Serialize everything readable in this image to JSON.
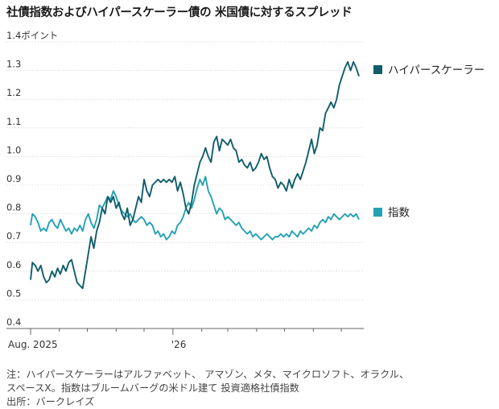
{
  "title": "社債指数およびハイパースケーラー債の 米国債に対するスプレッド",
  "notes": {
    "line1": "注：ハイパースケーラーはアルファベット、 アマゾン、メタ、マイクロソフト、オラクル、",
    "line2": "スペースX。指数はブルームバーグの米ドル建て 投資適格社債指数",
    "source": "出所：バークレイズ"
  },
  "chart_data": {
    "type": "line",
    "title": "社債指数およびハイパースケーラー債の 米国債に対するスプレッド",
    "ylabel": "ポイント",
    "ylim": [
      0.4,
      1.4
    ],
    "yticks": [
      "0.4",
      "0.5",
      "0.6",
      "0.7",
      "0.8",
      "0.9",
      "1.0",
      "1.1",
      "1.2",
      "1.3",
      "1.4ポイント"
    ],
    "xlabels": [
      "Aug. 2025",
      "'26"
    ],
    "x_range": [
      "2025-08-01",
      "2026-07-20"
    ],
    "grid": "horizontal",
    "legend": "right, end-of-line labels",
    "series": [
      {
        "name": "ハイパースケーラー",
        "color": "#0f5d6b",
        "x": [
          "2025-08-01",
          "2025-08-03",
          "2025-08-06",
          "2025-08-09",
          "2025-08-12",
          "2025-08-15",
          "2025-08-18",
          "2025-08-21",
          "2025-08-24",
          "2025-08-27",
          "2025-08-30",
          "2025-09-02",
          "2025-09-05",
          "2025-09-08",
          "2025-09-11",
          "2025-09-14",
          "2025-09-17",
          "2025-09-20",
          "2025-09-23",
          "2025-09-26",
          "2025-09-29",
          "2025-10-02",
          "2025-10-05",
          "2025-10-08",
          "2025-10-11",
          "2025-10-14",
          "2025-10-17",
          "2025-10-20",
          "2025-10-23",
          "2025-10-26",
          "2025-10-29",
          "2025-11-01",
          "2025-11-04",
          "2025-11-07",
          "2025-11-10",
          "2025-11-13",
          "2025-11-16",
          "2025-11-19",
          "2025-11-22",
          "2025-11-25",
          "2025-11-28",
          "2025-12-01",
          "2025-12-04",
          "2025-12-07",
          "2025-12-10",
          "2025-12-13",
          "2025-12-16",
          "2025-12-19",
          "2025-12-22",
          "2025-12-25",
          "2025-12-28",
          "2025-12-31",
          "2026-01-03",
          "2026-01-06",
          "2026-01-09",
          "2026-01-12",
          "2026-01-15",
          "2026-01-18",
          "2026-01-21",
          "2026-01-24",
          "2026-01-27",
          "2026-01-30",
          "2026-02-02",
          "2026-02-05",
          "2026-02-08",
          "2026-02-11",
          "2026-02-14",
          "2026-02-17",
          "2026-02-20",
          "2026-02-23",
          "2026-02-26",
          "2026-03-01",
          "2026-03-04",
          "2026-03-07",
          "2026-03-10",
          "2026-03-13",
          "2026-03-16",
          "2026-03-19",
          "2026-03-22",
          "2026-03-25",
          "2026-03-28",
          "2026-03-31",
          "2026-04-03",
          "2026-04-06",
          "2026-04-09",
          "2026-04-12",
          "2026-04-15",
          "2026-04-18",
          "2026-04-21",
          "2026-04-24",
          "2026-04-27",
          "2026-04-30",
          "2026-05-03",
          "2026-05-06",
          "2026-05-09",
          "2026-05-12",
          "2026-05-15",
          "2026-05-18",
          "2026-05-21",
          "2026-05-24",
          "2026-05-27",
          "2026-05-30",
          "2026-06-02",
          "2026-06-05",
          "2026-06-08",
          "2026-06-11",
          "2026-06-14",
          "2026-06-17",
          "2026-06-20",
          "2026-06-23",
          "2026-06-26",
          "2026-06-29",
          "2026-07-02",
          "2026-07-05",
          "2026-07-08",
          "2026-07-11",
          "2026-07-14",
          "2026-07-17",
          "2026-07-20"
        ],
        "values": [
          0.57,
          0.63,
          0.62,
          0.6,
          0.62,
          0.58,
          0.56,
          0.57,
          0.6,
          0.58,
          0.61,
          0.59,
          0.62,
          0.6,
          0.63,
          0.64,
          0.6,
          0.56,
          0.55,
          0.54,
          0.6,
          0.66,
          0.72,
          0.68,
          0.74,
          0.77,
          0.82,
          0.8,
          0.86,
          0.84,
          0.86,
          0.82,
          0.84,
          0.8,
          0.78,
          0.82,
          0.76,
          0.78,
          0.82,
          0.86,
          0.84,
          0.92,
          0.88,
          0.86,
          0.9,
          0.91,
          0.92,
          0.91,
          0.92,
          0.91,
          0.92,
          0.91,
          0.93,
          0.88,
          0.91,
          0.87,
          0.82,
          0.8,
          0.84,
          0.9,
          0.94,
          0.98,
          1.0,
          1.03,
          1.0,
          0.98,
          1.05,
          1.07,
          1.02,
          1.06,
          1.05,
          1.04,
          1.06,
          1.03,
          1.02,
          0.98,
          0.99,
          0.97,
          0.96,
          0.98,
          0.95,
          0.96,
          0.98,
          1.01,
          0.99,
          1.0,
          0.96,
          0.93,
          0.92,
          0.89,
          0.91,
          0.9,
          0.88,
          0.92,
          0.89,
          0.92,
          0.94,
          0.92,
          0.95,
          0.98,
          1.02,
          1.06,
          1.01,
          1.04,
          1.1,
          1.09,
          1.15,
          1.17,
          1.19,
          1.17,
          1.2,
          1.25,
          1.28,
          1.31,
          1.33,
          1.3,
          1.33,
          1.31,
          1.28
        ]
      },
      {
        "name": "指数",
        "color": "#24a1b3",
        "x": [
          "2025-08-01",
          "2025-08-03",
          "2025-08-06",
          "2025-08-09",
          "2025-08-12",
          "2025-08-15",
          "2025-08-18",
          "2025-08-21",
          "2025-08-24",
          "2025-08-27",
          "2025-08-30",
          "2025-09-02",
          "2025-09-05",
          "2025-09-08",
          "2025-09-11",
          "2025-09-14",
          "2025-09-17",
          "2025-09-20",
          "2025-09-23",
          "2025-09-26",
          "2025-09-29",
          "2025-10-02",
          "2025-10-05",
          "2025-10-08",
          "2025-10-11",
          "2025-10-14",
          "2025-10-17",
          "2025-10-20",
          "2025-10-23",
          "2025-10-26",
          "2025-10-29",
          "2025-11-01",
          "2025-11-04",
          "2025-11-07",
          "2025-11-10",
          "2025-11-13",
          "2025-11-16",
          "2025-11-19",
          "2025-11-22",
          "2025-11-25",
          "2025-11-28",
          "2025-12-01",
          "2025-12-04",
          "2025-12-07",
          "2025-12-10",
          "2025-12-13",
          "2025-12-16",
          "2025-12-19",
          "2025-12-22",
          "2025-12-25",
          "2025-12-28",
          "2025-12-31",
          "2026-01-03",
          "2026-01-06",
          "2026-01-09",
          "2026-01-12",
          "2026-01-15",
          "2026-01-18",
          "2026-01-21",
          "2026-01-24",
          "2026-01-27",
          "2026-01-30",
          "2026-02-02",
          "2026-02-05",
          "2026-02-08",
          "2026-02-11",
          "2026-02-14",
          "2026-02-17",
          "2026-02-20",
          "2026-02-23",
          "2026-02-26",
          "2026-03-01",
          "2026-03-04",
          "2026-03-07",
          "2026-03-10",
          "2026-03-13",
          "2026-03-16",
          "2026-03-19",
          "2026-03-22",
          "2026-03-25",
          "2026-03-28",
          "2026-03-31",
          "2026-04-03",
          "2026-04-06",
          "2026-04-09",
          "2026-04-12",
          "2026-04-15",
          "2026-04-18",
          "2026-04-21",
          "2026-04-24",
          "2026-04-27",
          "2026-04-30",
          "2026-05-03",
          "2026-05-06",
          "2026-05-09",
          "2026-05-12",
          "2026-05-15",
          "2026-05-18",
          "2026-05-21",
          "2026-05-24",
          "2026-05-27",
          "2026-05-30",
          "2026-06-02",
          "2026-06-05",
          "2026-06-08",
          "2026-06-11",
          "2026-06-14",
          "2026-06-17",
          "2026-06-20",
          "2026-06-23",
          "2026-06-26",
          "2026-06-29",
          "2026-07-02",
          "2026-07-05",
          "2026-07-08",
          "2026-07-11",
          "2026-07-14",
          "2026-07-17",
          "2026-07-20"
        ],
        "values": [
          0.76,
          0.8,
          0.79,
          0.77,
          0.74,
          0.75,
          0.74,
          0.77,
          0.78,
          0.76,
          0.75,
          0.78,
          0.76,
          0.74,
          0.75,
          0.73,
          0.75,
          0.74,
          0.76,
          0.74,
          0.78,
          0.8,
          0.77,
          0.75,
          0.78,
          0.83,
          0.82,
          0.84,
          0.86,
          0.85,
          0.88,
          0.86,
          0.83,
          0.81,
          0.8,
          0.79,
          0.8,
          0.78,
          0.77,
          0.78,
          0.79,
          0.78,
          0.76,
          0.77,
          0.76,
          0.73,
          0.74,
          0.72,
          0.73,
          0.71,
          0.72,
          0.74,
          0.73,
          0.76,
          0.77,
          0.79,
          0.82,
          0.84,
          0.82,
          0.85,
          0.89,
          0.92,
          0.9,
          0.93,
          0.88,
          0.86,
          0.83,
          0.8,
          0.82,
          0.81,
          0.78,
          0.79,
          0.78,
          0.77,
          0.76,
          0.77,
          0.75,
          0.74,
          0.73,
          0.74,
          0.72,
          0.73,
          0.72,
          0.71,
          0.72,
          0.73,
          0.72,
          0.71,
          0.72,
          0.72,
          0.73,
          0.72,
          0.73,
          0.72,
          0.74,
          0.73,
          0.72,
          0.74,
          0.73,
          0.74,
          0.75,
          0.74,
          0.76,
          0.75,
          0.77,
          0.78,
          0.77,
          0.79,
          0.78,
          0.8,
          0.79,
          0.78,
          0.79,
          0.8,
          0.79,
          0.8,
          0.79,
          0.8,
          0.78
        ]
      }
    ]
  }
}
